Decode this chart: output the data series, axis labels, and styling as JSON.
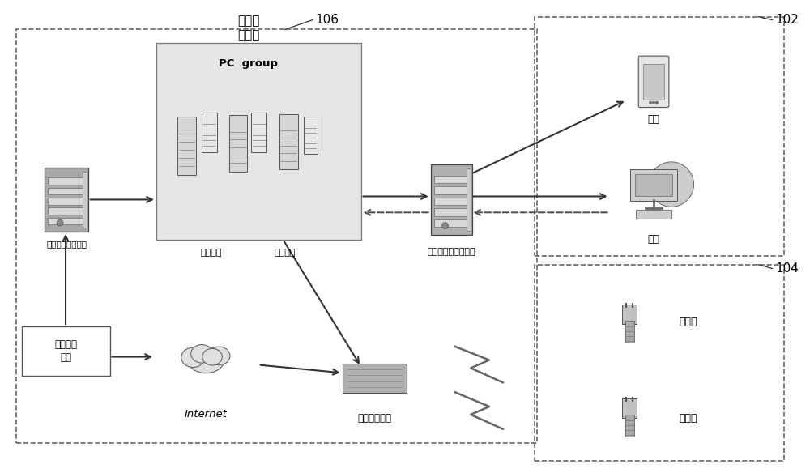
{
  "bg_color": "#ffffff",
  "labels": {
    "data_collection": "数据采\n集集群",
    "pc_group": "PC  group",
    "data_storage": "数据存储",
    "data_processing": "数据处理",
    "deep_learning": "深度学习云服务器",
    "other_data": "其它外部\n数据",
    "internet": "Internet",
    "edge_compute": "边缘计算终端",
    "cloud_platform": "外力入侵云应用平台",
    "terminal1": "终端",
    "terminal2": "终端",
    "sensor1": "传感器",
    "sensor2": "传感器",
    "label_102": "102",
    "label_104": "104",
    "label_106": "106"
  },
  "colors": {
    "box_fill": "#f0f0f0",
    "box_border": "#888888",
    "dashed_border": "#555555",
    "text": "#000000",
    "arrow": "#333333",
    "pc_group_fill": "#e8e8e8",
    "outer_box_fill": "#f8f8f8"
  }
}
